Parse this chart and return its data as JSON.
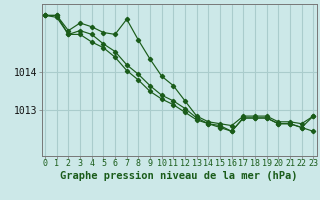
{
  "title": "Graphe pression niveau de la mer (hPa)",
  "background_color": "#cce8e8",
  "grid_color": "#aacccc",
  "line_color": "#1a5c1a",
  "x_ticks": [
    0,
    1,
    2,
    3,
    4,
    5,
    6,
    7,
    8,
    9,
    10,
    11,
    12,
    13,
    14,
    15,
    16,
    17,
    18,
    19,
    20,
    21,
    22,
    23
  ],
  "y_ticks": [
    1013,
    1014
  ],
  "ylim": [
    1011.8,
    1015.8
  ],
  "xlim": [
    -0.3,
    23.3
  ],
  "line1_y": [
    1015.5,
    1015.5,
    1015.1,
    1015.3,
    1015.2,
    1015.05,
    1015.0,
    1015.4,
    1014.85,
    1014.35,
    1013.9,
    1013.65,
    1013.25,
    1012.85,
    1012.7,
    1012.65,
    1012.6,
    1012.85,
    1012.85,
    1012.85,
    1012.7,
    1012.7,
    1012.65,
    1012.85
  ],
  "line2_y": [
    1015.5,
    1015.45,
    1015.0,
    1015.1,
    1015.0,
    1014.75,
    1014.55,
    1014.2,
    1013.95,
    1013.65,
    1013.4,
    1013.25,
    1013.05,
    1012.8,
    1012.65,
    1012.6,
    1012.45,
    1012.8,
    1012.8,
    1012.8,
    1012.65,
    1012.65,
    1012.55,
    1012.45
  ],
  "line3_y": [
    1015.5,
    1015.5,
    1015.0,
    1015.0,
    1014.8,
    1014.65,
    1014.4,
    1014.05,
    1013.8,
    1013.5,
    1013.3,
    1013.15,
    1012.95,
    1012.75,
    1012.65,
    1012.55,
    1012.45,
    1012.8,
    1012.8,
    1012.8,
    1012.65,
    1012.65,
    1012.55,
    1012.85
  ],
  "title_fontsize": 7.5,
  "tick_fontsize": 6.0,
  "ytick_fontsize": 7.0
}
